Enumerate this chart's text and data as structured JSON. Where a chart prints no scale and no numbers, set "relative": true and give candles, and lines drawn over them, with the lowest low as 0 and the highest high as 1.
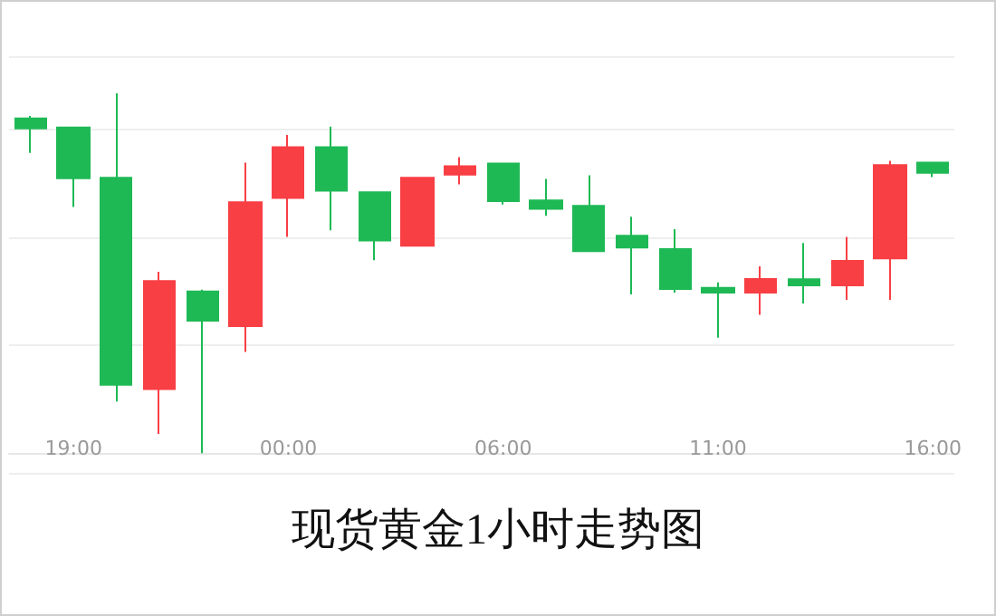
{
  "chart_data": {
    "type": "candlestick",
    "title": "现货黄金1小时走势图",
    "relative": true,
    "grid": "y",
    "categories": [
      null,
      "19:00",
      null,
      null,
      null,
      null,
      "00:00",
      null,
      null,
      null,
      null,
      "06:00",
      null,
      null,
      null,
      null,
      "11:00",
      null,
      null,
      null,
      null,
      "16:00"
    ],
    "ohlc": [
      [
        0.93,
        0.937,
        0.834,
        0.902
      ],
      [
        0.905,
        0.905,
        0.684,
        0.764
      ],
      [
        0.765,
        1,
        0.143,
        0.19
      ],
      [
        0.178,
        0.504,
        0.053,
        0.478
      ],
      [
        0.449,
        0.454,
        0,
        0.368
      ],
      [
        0.353,
        0.807,
        0.281,
        0.697
      ],
      [
        0.709,
        0.884,
        0.601,
        0.85
      ],
      [
        0.85,
        0.907,
        0.619,
        0.729
      ],
      [
        0.725,
        0.725,
        0.536,
        0.591
      ],
      [
        0.576,
        0.765,
        0.576,
        0.765
      ],
      [
        0.774,
        0.822,
        0.747,
        0.797
      ],
      [
        0.805,
        0.805,
        0.691,
        0.7
      ],
      [
        0.702,
        0.762,
        0.659,
        0.679
      ],
      [
        0.687,
        0.772,
        0.561,
        0.561
      ],
      [
        0.604,
        0.657,
        0.441,
        0.571
      ],
      [
        0.567,
        0.622,
        0.446,
        0.456
      ],
      [
        0.459,
        0.474,
        0.321,
        0.446
      ],
      [
        0.446,
        0.519,
        0.384,
        0.484
      ],
      [
        0.483,
        0.584,
        0.416,
        0.466
      ],
      [
        0.466,
        0.601,
        0.426,
        0.534
      ],
      [
        0.541,
        0.812,
        0.426,
        0.8
      ],
      [
        0.807,
        0.807,
        0.767,
        0.779
      ]
    ],
    "colors": [
      "#1eb955",
      "#1eb955",
      "#1eb955",
      "#f83f44",
      "#1eb955",
      "#f83f44",
      "#f83f44",
      "#1eb955",
      "#1eb955",
      "#f83f44",
      "#f83f44",
      "#1eb955",
      "#1eb955",
      "#1eb955",
      "#1eb955",
      "#1eb955",
      "#1eb955",
      "#f83f44",
      "#1eb955",
      "#f83f44",
      "#f83f44",
      "#1eb955"
    ]
  }
}
